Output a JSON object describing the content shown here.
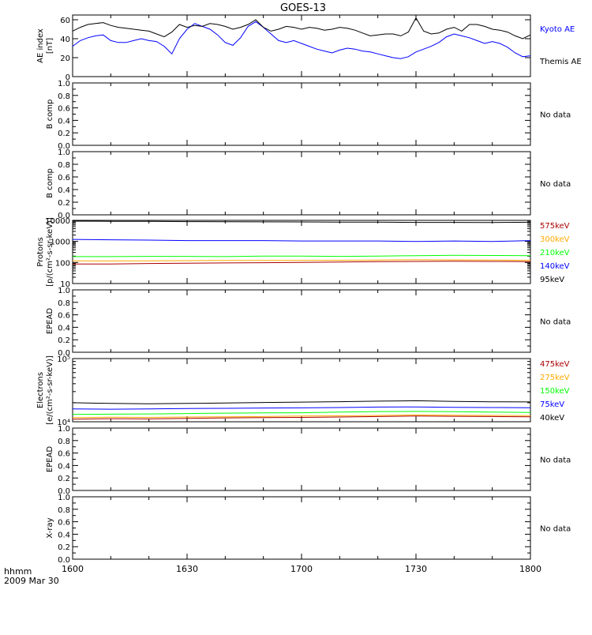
{
  "title": "GOES-13",
  "time_axis": {
    "corner_label": "hhmm",
    "date_label": "2009 Mar 30",
    "ticks": [
      "1600",
      "1630",
      "1700",
      "1730",
      "1800"
    ]
  },
  "colors": {
    "black": "#000000",
    "blue": "#0000ff",
    "green": "#00ff00",
    "orange": "#ffaa00",
    "dark_red": "#aa0000",
    "red": "#ff0000"
  },
  "chart_data": [
    {
      "id": "ae",
      "type": "line",
      "ylabel": [
        "AE index",
        "[nT]"
      ],
      "ylim": [
        0,
        65
      ],
      "yticks": [
        "0",
        "20",
        "40",
        "60"
      ],
      "x_minutes": [
        0,
        2,
        4,
        6,
        8,
        10,
        12,
        14,
        16,
        18,
        20,
        22,
        24,
        26,
        28,
        30,
        32,
        34,
        36,
        38,
        40,
        42,
        44,
        46,
        48,
        50,
        52,
        54,
        56,
        58,
        60,
        62,
        64,
        66,
        68,
        70,
        72,
        74,
        76,
        78,
        80,
        82,
        84,
        86,
        88,
        90,
        92,
        94,
        96,
        98,
        100,
        102,
        104,
        106,
        108,
        110,
        112,
        114,
        116,
        118,
        120
      ],
      "series": [
        {
          "name": "Kyoto AE",
          "color": "blue",
          "values": [
            32,
            38,
            41,
            43,
            44,
            38,
            36,
            36,
            38,
            40,
            38,
            37,
            32,
            24,
            40,
            50,
            56,
            53,
            50,
            44,
            36,
            33,
            41,
            53,
            58,
            52,
            45,
            38,
            36,
            38,
            35,
            32,
            29,
            27,
            25,
            28,
            30,
            29,
            27,
            26,
            24,
            22,
            20,
            19,
            21,
            26,
            29,
            32,
            36,
            42,
            45,
            43,
            41,
            38,
            35,
            37,
            35,
            31,
            25,
            21,
            22
          ]
        },
        {
          "name": "Themis AE",
          "color": "black",
          "values": [
            48,
            52,
            55,
            56,
            57,
            54,
            52,
            51,
            50,
            49,
            48,
            45,
            42,
            47,
            55,
            52,
            54,
            53,
            56,
            55,
            53,
            50,
            52,
            55,
            60,
            52,
            48,
            50,
            53,
            52,
            50,
            52,
            51,
            49,
            50,
            52,
            51,
            49,
            46,
            43,
            44,
            45,
            45,
            43,
            47,
            62,
            48,
            45,
            46,
            50,
            52,
            48,
            55,
            55,
            53,
            50,
            49,
            47,
            43,
            40,
            44
          ]
        }
      ]
    },
    {
      "id": "b1",
      "type": "line",
      "ylabel": [
        "B comp"
      ],
      "ylim": [
        0,
        1
      ],
      "yticks": [
        "0.0",
        "0.2",
        "0.4",
        "0.6",
        "0.8",
        "1.0"
      ],
      "note": "No data"
    },
    {
      "id": "b2",
      "type": "line",
      "ylabel": [
        "B comp"
      ],
      "ylim": [
        0,
        1
      ],
      "yticks": [
        "0.0",
        "0.2",
        "0.4",
        "0.6",
        "0.8",
        "1.0"
      ],
      "note": "No data"
    },
    {
      "id": "protons",
      "type": "line",
      "ylabel": [
        "Protons",
        "[p/(cm²-s-sr-keV)]"
      ],
      "ylim": [
        10,
        10000
      ],
      "log": true,
      "yticks": [
        "10",
        "100",
        "1000",
        "10000"
      ],
      "x_minutes": [
        0,
        10,
        20,
        30,
        40,
        50,
        60,
        70,
        80,
        90,
        100,
        110,
        120
      ],
      "series": [
        {
          "name": "575keV",
          "color": "dark_red",
          "values": [
            85,
            85,
            90,
            92,
            95,
            98,
            100,
            105,
            110,
            112,
            115,
            112,
            110
          ]
        },
        {
          "name": "300keV",
          "color": "orange",
          "values": [
            120,
            118,
            120,
            122,
            125,
            126,
            125,
            128,
            130,
            135,
            132,
            130,
            125
          ]
        },
        {
          "name": "210keV",
          "color": "green",
          "values": [
            190,
            190,
            195,
            195,
            190,
            200,
            200,
            195,
            200,
            210,
            220,
            215,
            210
          ]
        },
        {
          "name": "140keV",
          "color": "blue",
          "values": [
            1250,
            1200,
            1150,
            1100,
            1100,
            1100,
            1050,
            1050,
            1050,
            1000,
            1050,
            1000,
            1100
          ]
        },
        {
          "name": "95keV",
          "color": "black",
          "values": [
            9200,
            9000,
            8900,
            8700,
            8600,
            8500,
            8400,
            8300,
            8200,
            8000,
            8000,
            7900,
            8100
          ]
        }
      ]
    },
    {
      "id": "epead1",
      "type": "line",
      "ylabel": [
        "EPEAD"
      ],
      "ylim": [
        0,
        1
      ],
      "yticks": [
        "0.0",
        "0.2",
        "0.4",
        "0.6",
        "0.8",
        "1.0"
      ],
      "note": "No data"
    },
    {
      "id": "electrons",
      "type": "line",
      "ylabel": [
        "Electrons",
        "[e/(cm²-s-sr-keV)]"
      ],
      "ylim": [
        10000,
        100000
      ],
      "log": true,
      "yticks": [
        "10⁴",
        "10⁵"
      ],
      "x_minutes": [
        0,
        10,
        20,
        30,
        40,
        50,
        60,
        70,
        80,
        90,
        100,
        110,
        120
      ],
      "series": [
        {
          "name": "475keV",
          "color": "dark_red",
          "values": [
            11000,
            11200,
            11100,
            11300,
            11500,
            11600,
            11700,
            11900,
            12100,
            12300,
            12200,
            12100,
            12000
          ]
        },
        {
          "name": "275keV",
          "color": "orange",
          "values": [
            11600,
            11800,
            11700,
            11900,
            12000,
            12100,
            12300,
            12400,
            12600,
            12800,
            12700,
            12600,
            12500
          ]
        },
        {
          "name": "150keV",
          "color": "green",
          "values": [
            13100,
            13200,
            13300,
            13500,
            13700,
            13800,
            13900,
            14200,
            14500,
            14600,
            14400,
            14200,
            14000
          ]
        },
        {
          "name": "75keV",
          "color": "blue",
          "values": [
            16000,
            15800,
            16000,
            16200,
            16300,
            16500,
            16600,
            16800,
            17100,
            17200,
            16900,
            16800,
            16700
          ]
        },
        {
          "name": "40keV",
          "color": "black",
          "values": [
            20000,
            19500,
            19300,
            19500,
            19800,
            20200,
            20500,
            20800,
            21200,
            21500,
            21000,
            20700,
            20600
          ]
        }
      ]
    },
    {
      "id": "epead2",
      "type": "line",
      "ylabel": [
        "EPEAD"
      ],
      "ylim": [
        0,
        1
      ],
      "yticks": [
        "0.0",
        "0.2",
        "0.4",
        "0.6",
        "0.8",
        "1.0"
      ],
      "note": "No data"
    },
    {
      "id": "xray",
      "type": "line",
      "ylabel": [
        "X-ray"
      ],
      "ylim": [
        0,
        1
      ],
      "yticks": [
        "0.0",
        "0.2",
        "0.4",
        "0.6",
        "0.8",
        "1.0"
      ],
      "note": "No data"
    }
  ]
}
